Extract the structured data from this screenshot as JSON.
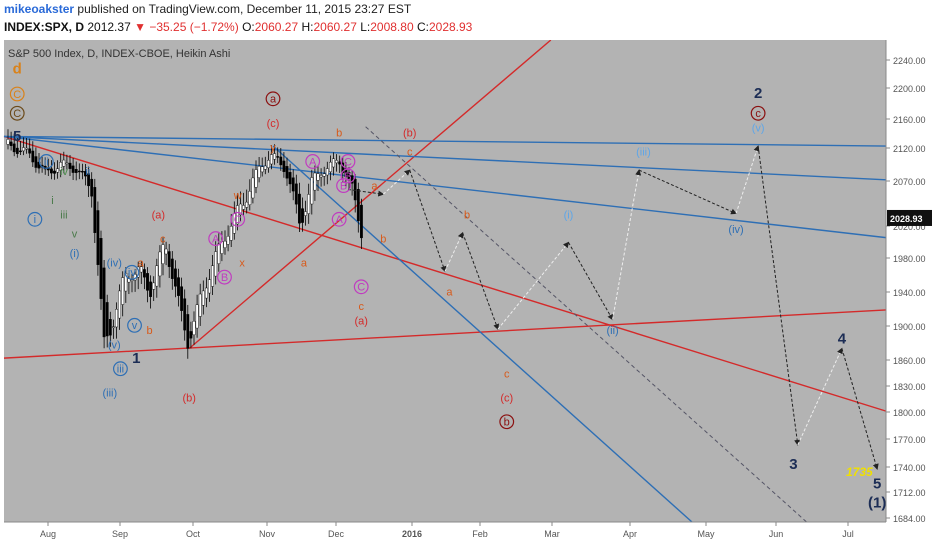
{
  "header": {
    "username": "mikeoakster",
    "published_text": "published on TradingView.com, December 11, 2015 23:27 EST"
  },
  "quote": {
    "symbol": "INDEX:SPX, D",
    "last": "2012.37",
    "change": "−35.25 (−1.72%)",
    "o_label": "O:",
    "o": "2060.27",
    "h_label": "H:",
    "h": "2060.27",
    "l_label": "L:",
    "l": "2008.80",
    "c_label": "C:",
    "c": "2028.93"
  },
  "chart_data": {
    "type": "candlestick",
    "title": "S&P 500 Index, D, INDEX-CBOE, Heikin Ashi",
    "ylim": [
      1684,
      2270
    ],
    "price_ticks": [
      2240,
      2200,
      2160,
      2120,
      2070,
      2020,
      1980,
      1940,
      1900,
      1860,
      1830,
      1800,
      1770,
      1740,
      1712,
      1684
    ],
    "x_labels": [
      "Aug",
      "Sep",
      "Oct",
      "Nov",
      "Dec",
      "2016",
      "Feb",
      "Mar",
      "Apr",
      "May",
      "Jun",
      "Jul"
    ],
    "last_price_label": "2028.93",
    "target_label": "1735",
    "grid": false,
    "colors": {
      "bg": "#b3b3b3",
      "bull": "#ffffff",
      "bear": "#000000",
      "red_line": "#d42a2a",
      "blue_line": "#2e6fb5",
      "purple": "#c03cc0",
      "orange": "#d85a1a",
      "dark_red": "#8b1010",
      "navy": "#1c2d55",
      "light_blue": "#5ea6e8",
      "axis_text": "#555555",
      "target": "#f0e000"
    },
    "annotations": [
      {
        "t": "d",
        "c": "#d9821a"
      },
      {
        "t": "C",
        "c": "#d9821a",
        "ring": true
      },
      {
        "t": "C",
        "c": "#6b4a1a",
        "ring": true
      },
      {
        "t": "5",
        "c": "#1c2d55"
      },
      {
        "t": "ii",
        "c": "#2e6fb5",
        "ring": true
      },
      {
        "t": "iv",
        "c": "#4a8a4a"
      },
      {
        "t": "ii",
        "c": "#2e6fb5"
      },
      {
        "t": "i",
        "c": "#4a7a4a"
      },
      {
        "t": "iii",
        "c": "#4a7a4a"
      },
      {
        "t": "v",
        "c": "#4a7a4a"
      },
      {
        "t": "i",
        "c": "#2e6fb5",
        "ring": true
      },
      {
        "t": "(i)",
        "c": "#2e6fb5"
      },
      {
        "t": "(iv)",
        "c": "#2e6fb5"
      },
      {
        "t": "iv",
        "c": "#2e6fb5",
        "ring": true
      },
      {
        "t": "a",
        "c": "#d85a1a"
      },
      {
        "t": "v",
        "c": "#2e6fb5",
        "ring": true
      },
      {
        "t": "(v)",
        "c": "#2e6fb5"
      },
      {
        "t": "iii",
        "c": "#2e6fb5",
        "ring": true
      },
      {
        "t": "1",
        "c": "#1c2d55"
      },
      {
        "t": "(iii)",
        "c": "#2e6fb5"
      },
      {
        "t": "(a)",
        "c": "#d42a2a"
      },
      {
        "t": "c",
        "c": "#d85a1a"
      },
      {
        "t": "b",
        "c": "#d85a1a"
      },
      {
        "t": "(b)",
        "c": "#d42a2a"
      },
      {
        "t": "w",
        "c": "#d85a1a"
      },
      {
        "t": "x",
        "c": "#d85a1a"
      },
      {
        "t": "A",
        "c": "#c03cc0",
        "ring": true
      },
      {
        "t": "C",
        "c": "#c03cc0",
        "ring": true
      },
      {
        "t": "B",
        "c": "#c03cc0",
        "ring": true
      },
      {
        "t": "a",
        "c": "#8b1010",
        "ring": true
      },
      {
        "t": "(c)",
        "c": "#d42a2a"
      },
      {
        "t": "y",
        "c": "#d85a1a"
      },
      {
        "t": "a",
        "c": "#d85a1a"
      },
      {
        "t": "b",
        "c": "#d85a1a"
      },
      {
        "t": "A",
        "c": "#c03cc0",
        "ring": true
      },
      {
        "t": "C",
        "c": "#c03cc0",
        "ring": true
      },
      {
        "t": "B",
        "c": "#c03cc0",
        "ring": true
      },
      {
        "t": "B",
        "c": "#c03cc0",
        "ring": true
      },
      {
        "t": "A",
        "c": "#c03cc0",
        "ring": true
      },
      {
        "t": "a",
        "c": "#d85a1a"
      },
      {
        "t": "b",
        "c": "#d85a1a"
      },
      {
        "t": "C",
        "c": "#c03cc0",
        "ring": true
      },
      {
        "t": "c",
        "c": "#d85a1a"
      },
      {
        "t": "(a)",
        "c": "#d42a2a"
      },
      {
        "t": "(b)",
        "c": "#d42a2a"
      },
      {
        "t": "c",
        "c": "#d85a1a"
      },
      {
        "t": "b",
        "c": "#d85a1a"
      },
      {
        "t": "a",
        "c": "#d85a1a"
      },
      {
        "t": "c",
        "c": "#d85a1a"
      },
      {
        "t": "(c)",
        "c": "#d42a2a"
      },
      {
        "t": "b",
        "c": "#8b1010",
        "ring": true
      },
      {
        "t": "(i)",
        "c": "#5ea6e8"
      },
      {
        "t": "(ii)",
        "c": "#2e6fb5"
      },
      {
        "t": "(iii)",
        "c": "#5ea6e8"
      },
      {
        "t": "(iv)",
        "c": "#2e6fb5"
      },
      {
        "t": "(v)",
        "c": "#5ea6e8"
      },
      {
        "t": "2",
        "c": "#1c2d55"
      },
      {
        "t": "c",
        "c": "#8b1010",
        "ring": true
      },
      {
        "t": "3",
        "c": "#1c2d55"
      },
      {
        "t": "4",
        "c": "#1c2d55"
      },
      {
        "t": "5",
        "c": "#1c2d55"
      },
      {
        "t": "(1)",
        "c": "#1c2d55"
      }
    ]
  }
}
